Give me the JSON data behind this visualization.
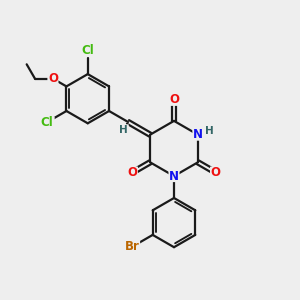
{
  "background_color": "#eeeeee",
  "bond_color": "#1a1a1a",
  "bond_width": 1.6,
  "atom_colors": {
    "O": "#ee1111",
    "N": "#1111ee",
    "Cl": "#44bb11",
    "Br": "#bb6600",
    "H_label": "#336666",
    "C": "#1a1a1a"
  },
  "font_size_atom": 8.5
}
